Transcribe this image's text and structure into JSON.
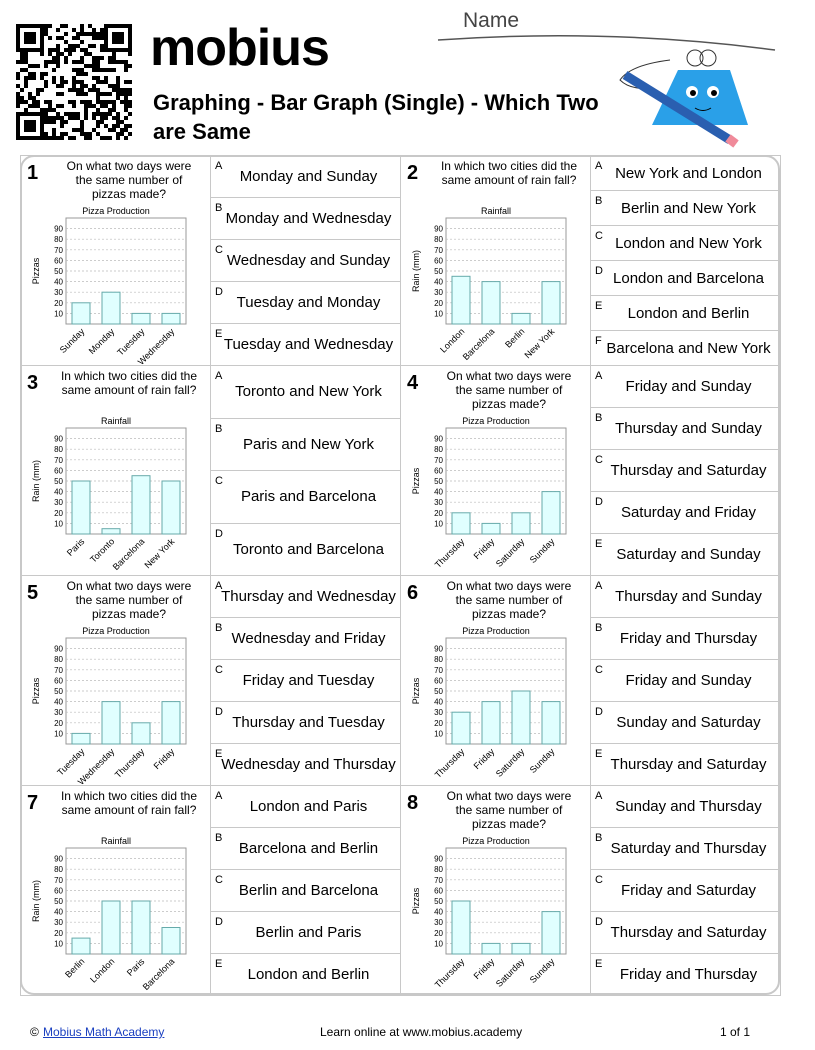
{
  "header": {
    "logo": "mobius",
    "title": "Graphing - Bar Graph (Single) - Which Two are Same",
    "name_label": "Name"
  },
  "problems": [
    {
      "number": 1,
      "question": "On what two days were the same number of pizzas made?",
      "chart": {
        "type": "bar",
        "title": "Pizza Production",
        "ylabel": "Pizzas",
        "categories": [
          "Sunday",
          "Monday",
          "Tuesday",
          "Wednesday"
        ],
        "values": [
          20,
          30,
          10,
          10
        ],
        "ylim": [
          0,
          100
        ],
        "yticks": [
          10,
          20,
          30,
          40,
          50,
          60,
          70,
          80,
          90
        ],
        "color": "#e0ffff"
      },
      "options": [
        {
          "letter": "A",
          "text": "Monday and Sunday"
        },
        {
          "letter": "B",
          "text": "Monday and Wednesday"
        },
        {
          "letter": "C",
          "text": "Wednesday and Sunday"
        },
        {
          "letter": "D",
          "text": "Tuesday and Monday"
        },
        {
          "letter": "E",
          "text": "Tuesday and Wednesday"
        }
      ]
    },
    {
      "number": 2,
      "question": "In which two cities did the same amount of rain fall?",
      "chart": {
        "type": "bar",
        "title": "Rainfall",
        "ylabel": "Rain (mm)",
        "categories": [
          "London",
          "Barcelona",
          "Berlin",
          "New York"
        ],
        "values": [
          45,
          40,
          10,
          40
        ],
        "ylim": [
          0,
          100
        ],
        "yticks": [
          10,
          20,
          30,
          40,
          50,
          60,
          70,
          80,
          90
        ],
        "color": "#e0ffff"
      },
      "options": [
        {
          "letter": "A",
          "text": "New York and London"
        },
        {
          "letter": "B",
          "text": "Berlin and New York"
        },
        {
          "letter": "C",
          "text": "London and New York"
        },
        {
          "letter": "D",
          "text": "London and Barcelona"
        },
        {
          "letter": "E",
          "text": "London and Berlin"
        },
        {
          "letter": "F",
          "text": "Barcelona and New York"
        }
      ]
    },
    {
      "number": 3,
      "question": "In which two cities did the same amount of rain fall?",
      "chart": {
        "type": "bar",
        "title": "Rainfall",
        "ylabel": "Rain (mm)",
        "categories": [
          "Paris",
          "Toronto",
          "Barcelona",
          "New York"
        ],
        "values": [
          50,
          5,
          55,
          50
        ],
        "ylim": [
          0,
          100
        ],
        "yticks": [
          10,
          20,
          30,
          40,
          50,
          60,
          70,
          80,
          90
        ],
        "color": "#e0ffff"
      },
      "options": [
        {
          "letter": "A",
          "text": "Toronto and New York"
        },
        {
          "letter": "B",
          "text": "Paris and New York"
        },
        {
          "letter": "C",
          "text": "Paris and Barcelona"
        },
        {
          "letter": "D",
          "text": "Toronto and Barcelona"
        }
      ]
    },
    {
      "number": 4,
      "question": "On what two days were the same number of pizzas made?",
      "chart": {
        "type": "bar",
        "title": "Pizza Production",
        "ylabel": "Pizzas",
        "categories": [
          "Thursday",
          "Friday",
          "Saturday",
          "Sunday"
        ],
        "values": [
          20,
          10,
          20,
          40
        ],
        "ylim": [
          0,
          100
        ],
        "yticks": [
          10,
          20,
          30,
          40,
          50,
          60,
          70,
          80,
          90
        ],
        "color": "#e0ffff"
      },
      "options": [
        {
          "letter": "A",
          "text": "Friday and Sunday"
        },
        {
          "letter": "B",
          "text": "Thursday and Sunday"
        },
        {
          "letter": "C",
          "text": "Thursday and Saturday"
        },
        {
          "letter": "D",
          "text": "Saturday and Friday"
        },
        {
          "letter": "E",
          "text": "Saturday and Sunday"
        }
      ]
    },
    {
      "number": 5,
      "question": "On what two days were the same number of pizzas made?",
      "chart": {
        "type": "bar",
        "title": "Pizza Production",
        "ylabel": "Pizzas",
        "categories": [
          "Tuesday",
          "Wednesday",
          "Thursday",
          "Friday"
        ],
        "values": [
          10,
          40,
          20,
          40
        ],
        "ylim": [
          0,
          100
        ],
        "yticks": [
          10,
          20,
          30,
          40,
          50,
          60,
          70,
          80,
          90
        ],
        "color": "#e0ffff"
      },
      "options": [
        {
          "letter": "A",
          "text": "Thursday and Wednesday"
        },
        {
          "letter": "B",
          "text": "Wednesday and Friday"
        },
        {
          "letter": "C",
          "text": "Friday and Tuesday"
        },
        {
          "letter": "D",
          "text": "Thursday and Tuesday"
        },
        {
          "letter": "E",
          "text": "Wednesday and Thursday"
        }
      ]
    },
    {
      "number": 6,
      "question": "On what two days were the same number of pizzas made?",
      "chart": {
        "type": "bar",
        "title": "Pizza Production",
        "ylabel": "Pizzas",
        "categories": [
          "Thursday",
          "Friday",
          "Saturday",
          "Sunday"
        ],
        "values": [
          30,
          40,
          50,
          40
        ],
        "ylim": [
          0,
          100
        ],
        "yticks": [
          10,
          20,
          30,
          40,
          50,
          60,
          70,
          80,
          90
        ],
        "color": "#e0ffff"
      },
      "options": [
        {
          "letter": "A",
          "text": "Thursday and Sunday"
        },
        {
          "letter": "B",
          "text": "Friday and Thursday"
        },
        {
          "letter": "C",
          "text": "Friday and Sunday"
        },
        {
          "letter": "D",
          "text": "Sunday and Saturday"
        },
        {
          "letter": "E",
          "text": "Thursday and Saturday"
        }
      ]
    },
    {
      "number": 7,
      "question": "In which two cities did the same amount of rain fall?",
      "chart": {
        "type": "bar",
        "title": "Rainfall",
        "ylabel": "Rain (mm)",
        "categories": [
          "Berlin",
          "London",
          "Paris",
          "Barcelona"
        ],
        "values": [
          15,
          50,
          50,
          25
        ],
        "ylim": [
          0,
          100
        ],
        "yticks": [
          10,
          20,
          30,
          40,
          50,
          60,
          70,
          80,
          90
        ],
        "color": "#e0ffff"
      },
      "options": [
        {
          "letter": "A",
          "text": "London and Paris"
        },
        {
          "letter": "B",
          "text": "Barcelona and Berlin"
        },
        {
          "letter": "C",
          "text": "Berlin and Barcelona"
        },
        {
          "letter": "D",
          "text": "Berlin and Paris"
        },
        {
          "letter": "E",
          "text": "London and Berlin"
        }
      ]
    },
    {
      "number": 8,
      "question": "On what two days were the same number of pizzas made?",
      "chart": {
        "type": "bar",
        "title": "Pizza Production",
        "ylabel": "Pizzas",
        "categories": [
          "Thursday",
          "Friday",
          "Saturday",
          "Sunday"
        ],
        "values": [
          50,
          10,
          10,
          40
        ],
        "ylim": [
          0,
          100
        ],
        "yticks": [
          10,
          20,
          30,
          40,
          50,
          60,
          70,
          80,
          90
        ],
        "color": "#e0ffff"
      },
      "options": [
        {
          "letter": "A",
          "text": "Sunday and Thursday"
        },
        {
          "letter": "B",
          "text": "Saturday and Thursday"
        },
        {
          "letter": "C",
          "text": "Friday and Saturday"
        },
        {
          "letter": "D",
          "text": "Thursday and Saturday"
        },
        {
          "letter": "E",
          "text": "Friday and Thursday"
        }
      ]
    }
  ],
  "footer": {
    "copyright": "©",
    "link": "Mobius Math Academy",
    "learn": "Learn online at www.mobius.academy",
    "page": "1 of 1"
  }
}
